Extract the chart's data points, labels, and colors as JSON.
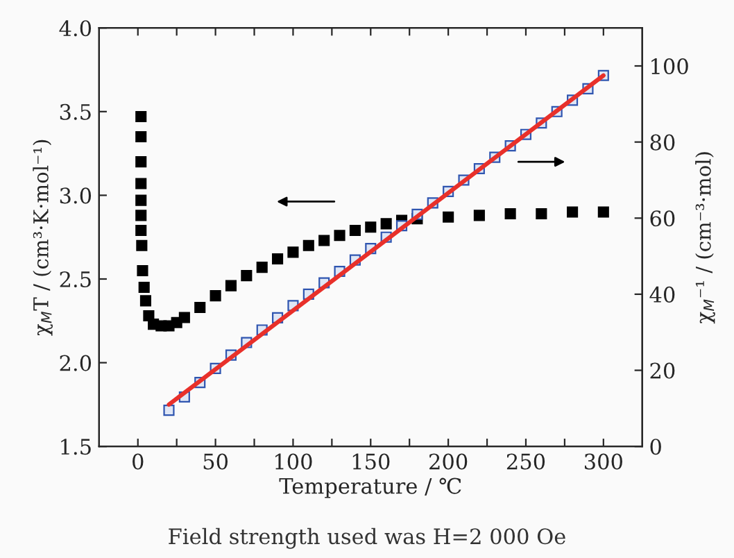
{
  "chart_data": {
    "type": "scatter",
    "xlabel": "Temperature / ℃",
    "ylabel": "χ$_{M}$T / (cm³·K·mol⁻¹)",
    "y2label": "χ$_{M}$⁻¹ / (cm⁻³·mol)",
    "xlim": [
      -25,
      325
    ],
    "xticks": [
      0,
      {
        "value": 25,
        "label": null
      },
      50,
      {
        "value": 75,
        "label": null
      },
      100,
      {
        "value": 125,
        "label": null
      },
      150,
      {
        "value": 175,
        "label": null
      },
      200,
      {
        "value": 225,
        "label": null
      },
      250,
      {
        "value": 275,
        "label": null
      },
      300
    ],
    "ylim": [
      1.5,
      4.0
    ],
    "yticks": [
      {
        "value": 1.5,
        "label": "1.5"
      },
      {
        "value": 2.0,
        "label": "2.0"
      },
      {
        "value": 2.5,
        "label": "2.5"
      },
      {
        "value": 3.0,
        "label": "3.0"
      },
      {
        "value": 3.5,
        "label": "3.5"
      },
      {
        "value": 4.0,
        "label": "4.0"
      }
    ],
    "y2lim": [
      0,
      110
    ],
    "y2ticks": [
      0,
      20,
      40,
      60,
      80,
      100
    ],
    "grid": false,
    "legend": false,
    "marker": "square",
    "series": [
      {
        "color": "#000000",
        "x": [
          2,
          2,
          2,
          2,
          2,
          2,
          2,
          2.5,
          3,
          4,
          5,
          7,
          10,
          15,
          20,
          25,
          30,
          40,
          50,
          60,
          70,
          80,
          90,
          100,
          110,
          120,
          130,
          140,
          150,
          160,
          170,
          180,
          200,
          220,
          240,
          260,
          280,
          300
        ],
        "values": [
          3.47,
          3.35,
          3.2,
          3.07,
          2.97,
          2.88,
          2.79,
          2.7,
          2.55,
          2.45,
          2.37,
          2.28,
          2.23,
          2.22,
          2.22,
          2.24,
          2.27,
          2.33,
          2.4,
          2.46,
          2.52,
          2.57,
          2.62,
          2.66,
          2.7,
          2.73,
          2.76,
          2.79,
          2.81,
          2.83,
          2.85,
          2.86,
          2.87,
          2.88,
          2.89,
          2.89,
          2.9,
          2.9
        ]
      },
      {
        "type": "scatter",
        "color": "#2f55b0",
        "axis": "y2",
        "x": [
          20,
          30,
          40,
          50,
          60,
          70,
          80,
          90,
          100,
          110,
          120,
          130,
          140,
          150,
          160,
          170,
          180,
          190,
          200,
          210,
          220,
          230,
          240,
          250,
          260,
          270,
          280,
          290,
          300
        ],
        "values": [
          9.5,
          13,
          16.8,
          20.5,
          24,
          27.3,
          30.6,
          33.8,
          37,
          40,
          43,
          46,
          49,
          52,
          55,
          58,
          61,
          64,
          67,
          70,
          73,
          76,
          79,
          82,
          85,
          88,
          91,
          94,
          97.5
        ]
      },
      {
        "type": "line",
        "color": "#e8302a",
        "axis": "y2",
        "marker": "none",
        "x": [
          20,
          300
        ],
        "values": [
          11,
          97.5
        ]
      }
    ],
    "annotations": [
      "Field strength used was H=2 000 Oe"
    ]
  }
}
